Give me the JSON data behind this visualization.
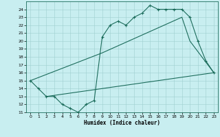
{
  "title": "",
  "xlabel": "Humidex (Indice chaleur)",
  "bg_color": "#c8eef0",
  "line_color": "#1a6b5a",
  "xlim": [
    -0.5,
    23.5
  ],
  "ylim": [
    11,
    25
  ],
  "yticks": [
    11,
    12,
    13,
    14,
    15,
    16,
    17,
    18,
    19,
    20,
    21,
    22,
    23,
    24
  ],
  "xticks": [
    0,
    1,
    2,
    3,
    4,
    5,
    6,
    7,
    8,
    9,
    10,
    11,
    12,
    13,
    14,
    15,
    16,
    17,
    18,
    19,
    20,
    21,
    22,
    23
  ],
  "line1_x": [
    0,
    1,
    2,
    3,
    4,
    5,
    6,
    7,
    8,
    9,
    10,
    11,
    12,
    13,
    14,
    15,
    16,
    17,
    18,
    19,
    20,
    21,
    22,
    23
  ],
  "line1_y": [
    15,
    14,
    13,
    13,
    12,
    11.5,
    11,
    12,
    12.5,
    20.5,
    22,
    22.5,
    22,
    23,
    23.5,
    24.5,
    24,
    24,
    24,
    24,
    23,
    20,
    17.5,
    16
  ],
  "line2_x": [
    0,
    9,
    19,
    20,
    23
  ],
  "line2_y": [
    15,
    18.5,
    23,
    20,
    16
  ],
  "line3_x": [
    2,
    23
  ],
  "line3_y": [
    13,
    16
  ]
}
